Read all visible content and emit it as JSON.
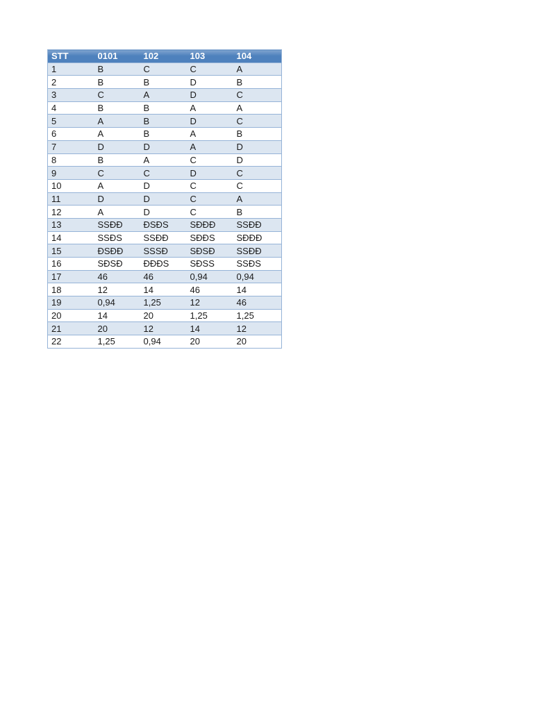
{
  "page": {
    "background": "#ffffff"
  },
  "table": {
    "headers": [
      "STT",
      "0101",
      "102",
      "103",
      "104"
    ],
    "rows": [
      [
        "1",
        "B",
        "C",
        "C",
        "A"
      ],
      [
        "2",
        "B",
        "B",
        "D",
        "B"
      ],
      [
        "3",
        "C",
        "A",
        "D",
        "C"
      ],
      [
        "4",
        "B",
        "B",
        "A",
        "A"
      ],
      [
        "5",
        "A",
        "B",
        "D",
        "C"
      ],
      [
        "6",
        "A",
        "B",
        "A",
        "B"
      ],
      [
        "7",
        "D",
        "D",
        "A",
        "D"
      ],
      [
        "8",
        "B",
        "A",
        "C",
        "D"
      ],
      [
        "9",
        "C",
        "C",
        "D",
        "C"
      ],
      [
        "10",
        "A",
        "D",
        "C",
        "C"
      ],
      [
        "11",
        "D",
        "D",
        "C",
        "A"
      ],
      [
        "12",
        "A",
        "D",
        "C",
        "B"
      ],
      [
        "13",
        "SSĐĐ",
        "ĐSĐS",
        "SĐĐĐ",
        "SSĐĐ"
      ],
      [
        "14",
        "SSĐS",
        "SSĐĐ",
        "SĐĐS",
        "SĐĐĐ"
      ],
      [
        "15",
        "ĐSĐĐ",
        "SSSĐ",
        "SĐSĐ",
        "SSĐĐ"
      ],
      [
        "16",
        "SĐSĐ",
        "ĐĐĐS",
        "SĐSS",
        "SSĐS"
      ],
      [
        "17",
        "46",
        "46",
        "0,94",
        "0,94"
      ],
      [
        "18",
        "12",
        "14",
        "46",
        "14"
      ],
      [
        "19",
        "0,94",
        "1,25",
        "12",
        "46"
      ],
      [
        "20",
        "14",
        "20",
        "1,25",
        "1,25"
      ],
      [
        "21",
        "20",
        "12",
        "14",
        "12"
      ],
      [
        "22",
        "1,25",
        "0,94",
        "20",
        "20"
      ]
    ],
    "colors": {
      "header_bg": "#4e81bd",
      "header_bg_light": "#7fa3ce",
      "header_text": "#ffffff",
      "band_row_bg": "#dce6f1",
      "plain_row_bg": "#ffffff",
      "border": "#95b3d7",
      "body_text": "#1a1a1a"
    }
  }
}
